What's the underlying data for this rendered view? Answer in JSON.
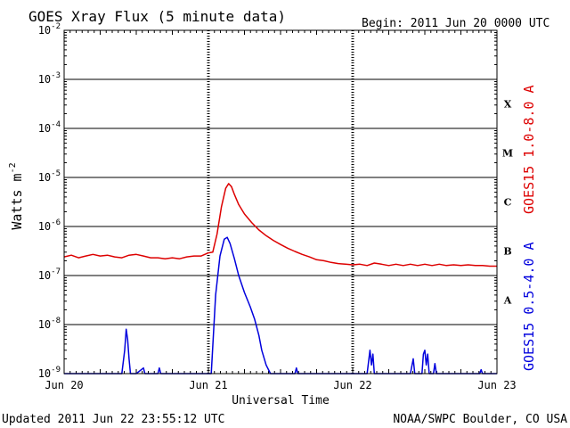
{
  "chart_data": {
    "type": "line",
    "title": "GOES Xray Flux (5 minute data)",
    "begin_label": "Begin:  2011 Jun 20 0000 UTC",
    "xlabel": "Universal Time",
    "ylabel": "Watts m",
    "ylabel_sup": "-2",
    "y_scale": "log",
    "ylim": [
      1e-09,
      0.01
    ],
    "xlim": [
      0,
      3
    ],
    "x_unit": "days since 2011 Jun 20 0000 UTC",
    "x_ticks": [
      {
        "value": 0,
        "label": "Jun 20"
      },
      {
        "value": 1,
        "label": "Jun 21"
      },
      {
        "value": 2,
        "label": "Jun 22"
      },
      {
        "value": 3,
        "label": "Jun 23"
      }
    ],
    "y_ticks": [
      {
        "exp": -9,
        "base": "10",
        "sup": "-9"
      },
      {
        "exp": -8,
        "base": "10",
        "sup": "-8"
      },
      {
        "exp": -7,
        "base": "10",
        "sup": "-7"
      },
      {
        "exp": -6,
        "base": "10",
        "sup": "-6"
      },
      {
        "exp": -5,
        "base": "10",
        "sup": "-5"
      },
      {
        "exp": -4,
        "base": "10",
        "sup": "-4"
      },
      {
        "exp": -3,
        "base": "10",
        "sup": "-3"
      },
      {
        "exp": -2,
        "base": "10",
        "sup": "-2"
      }
    ],
    "class_labels": [
      {
        "label": "A",
        "exp": -7.5
      },
      {
        "label": "B",
        "exp": -6.5
      },
      {
        "label": "C",
        "exp": -5.5
      },
      {
        "label": "M",
        "exp": -4.5
      },
      {
        "label": "X",
        "exp": -3.5
      }
    ],
    "grid": true,
    "series": [
      {
        "name": "GOES15 1.0-8.0 A",
        "color": "#dd0000",
        "points": [
          [
            0.0,
            2.4e-07
          ],
          [
            0.05,
            2.6e-07
          ],
          [
            0.1,
            2.3e-07
          ],
          [
            0.15,
            2.5e-07
          ],
          [
            0.2,
            2.7e-07
          ],
          [
            0.25,
            2.5e-07
          ],
          [
            0.3,
            2.6e-07
          ],
          [
            0.35,
            2.4e-07
          ],
          [
            0.4,
            2.3e-07
          ],
          [
            0.45,
            2.6e-07
          ],
          [
            0.5,
            2.7e-07
          ],
          [
            0.55,
            2.5e-07
          ],
          [
            0.6,
            2.3e-07
          ],
          [
            0.65,
            2.3e-07
          ],
          [
            0.7,
            2.2e-07
          ],
          [
            0.75,
            2.3e-07
          ],
          [
            0.8,
            2.2e-07
          ],
          [
            0.85,
            2.4e-07
          ],
          [
            0.9,
            2.5e-07
          ],
          [
            0.95,
            2.5e-07
          ],
          [
            1.0,
            2.9e-07
          ],
          [
            1.03,
            3e-07
          ],
          [
            1.06,
            7e-07
          ],
          [
            1.09,
            2.5e-06
          ],
          [
            1.12,
            6e-06
          ],
          [
            1.14,
            7.5e-06
          ],
          [
            1.16,
            6.5e-06
          ],
          [
            1.18,
            4.5e-06
          ],
          [
            1.21,
            2.8e-06
          ],
          [
            1.25,
            1.8e-06
          ],
          [
            1.3,
            1.2e-06
          ],
          [
            1.35,
            8.5e-07
          ],
          [
            1.4,
            6.5e-07
          ],
          [
            1.45,
            5.2e-07
          ],
          [
            1.5,
            4.3e-07
          ],
          [
            1.55,
            3.6e-07
          ],
          [
            1.6,
            3.1e-07
          ],
          [
            1.65,
            2.7e-07
          ],
          [
            1.7,
            2.4e-07
          ],
          [
            1.75,
            2.1e-07
          ],
          [
            1.8,
            2e-07
          ],
          [
            1.85,
            1.85e-07
          ],
          [
            1.9,
            1.75e-07
          ],
          [
            1.95,
            1.7e-07
          ],
          [
            2.0,
            1.65e-07
          ],
          [
            2.05,
            1.7e-07
          ],
          [
            2.1,
            1.6e-07
          ],
          [
            2.15,
            1.8e-07
          ],
          [
            2.2,
            1.7e-07
          ],
          [
            2.25,
            1.6e-07
          ],
          [
            2.3,
            1.7e-07
          ],
          [
            2.35,
            1.6e-07
          ],
          [
            2.4,
            1.7e-07
          ],
          [
            2.45,
            1.6e-07
          ],
          [
            2.5,
            1.7e-07
          ],
          [
            2.55,
            1.6e-07
          ],
          [
            2.6,
            1.7e-07
          ],
          [
            2.65,
            1.6e-07
          ],
          [
            2.7,
            1.65e-07
          ],
          [
            2.75,
            1.6e-07
          ],
          [
            2.8,
            1.65e-07
          ],
          [
            2.85,
            1.6e-07
          ],
          [
            2.9,
            1.6e-07
          ],
          [
            2.95,
            1.55e-07
          ],
          [
            3.0,
            1.55e-07
          ]
        ]
      },
      {
        "name": "GOES15 0.5-4.0 A",
        "color": "#0000dd",
        "points": [
          [
            0.0,
            1e-09
          ],
          [
            0.4,
            1e-09
          ],
          [
            0.42,
            3e-09
          ],
          [
            0.43,
            8e-09
          ],
          [
            0.44,
            5e-09
          ],
          [
            0.45,
            2e-09
          ],
          [
            0.46,
            1e-09
          ],
          [
            0.5,
            1e-09
          ],
          [
            0.55,
            1.3e-09
          ],
          [
            0.56,
            1e-09
          ],
          [
            0.65,
            1e-09
          ],
          [
            0.66,
            1.3e-09
          ],
          [
            0.67,
            1e-09
          ],
          [
            1.02,
            1e-09
          ],
          [
            1.05,
            4e-08
          ],
          [
            1.08,
            2.5e-07
          ],
          [
            1.11,
            5.5e-07
          ],
          [
            1.13,
            6e-07
          ],
          [
            1.15,
            4.5e-07
          ],
          [
            1.18,
            2.2e-07
          ],
          [
            1.21,
            1e-07
          ],
          [
            1.25,
            4.5e-08
          ],
          [
            1.29,
            2.3e-08
          ],
          [
            1.32,
            1.3e-08
          ],
          [
            1.35,
            6e-09
          ],
          [
            1.37,
            3e-09
          ],
          [
            1.4,
            1.5e-09
          ],
          [
            1.43,
            1e-09
          ],
          [
            1.6,
            1e-09
          ],
          [
            1.61,
            1.3e-09
          ],
          [
            1.62,
            1e-09
          ],
          [
            1.9,
            1e-09
          ],
          [
            2.1,
            1e-09
          ],
          [
            2.12,
            3e-09
          ],
          [
            2.13,
            1.5e-09
          ],
          [
            2.14,
            2.5e-09
          ],
          [
            2.15,
            1e-09
          ],
          [
            2.4,
            1e-09
          ],
          [
            2.42,
            2e-09
          ],
          [
            2.43,
            1e-09
          ],
          [
            2.48,
            1e-09
          ],
          [
            2.49,
            2.5e-09
          ],
          [
            2.5,
            3e-09
          ],
          [
            2.51,
            1.5e-09
          ],
          [
            2.52,
            2.5e-09
          ],
          [
            2.53,
            1e-09
          ],
          [
            2.56,
            1e-09
          ],
          [
            2.57,
            1.6e-09
          ],
          [
            2.58,
            1e-09
          ],
          [
            2.88,
            1e-09
          ],
          [
            2.89,
            1.2e-09
          ],
          [
            2.9,
            1e-09
          ],
          [
            3.0,
            1e-09
          ]
        ]
      }
    ]
  },
  "footer": {
    "updated": "Updated 2011 Jun 22 23:55:12 UTC",
    "credit": "NOAA/SWPC Boulder, CO USA"
  }
}
